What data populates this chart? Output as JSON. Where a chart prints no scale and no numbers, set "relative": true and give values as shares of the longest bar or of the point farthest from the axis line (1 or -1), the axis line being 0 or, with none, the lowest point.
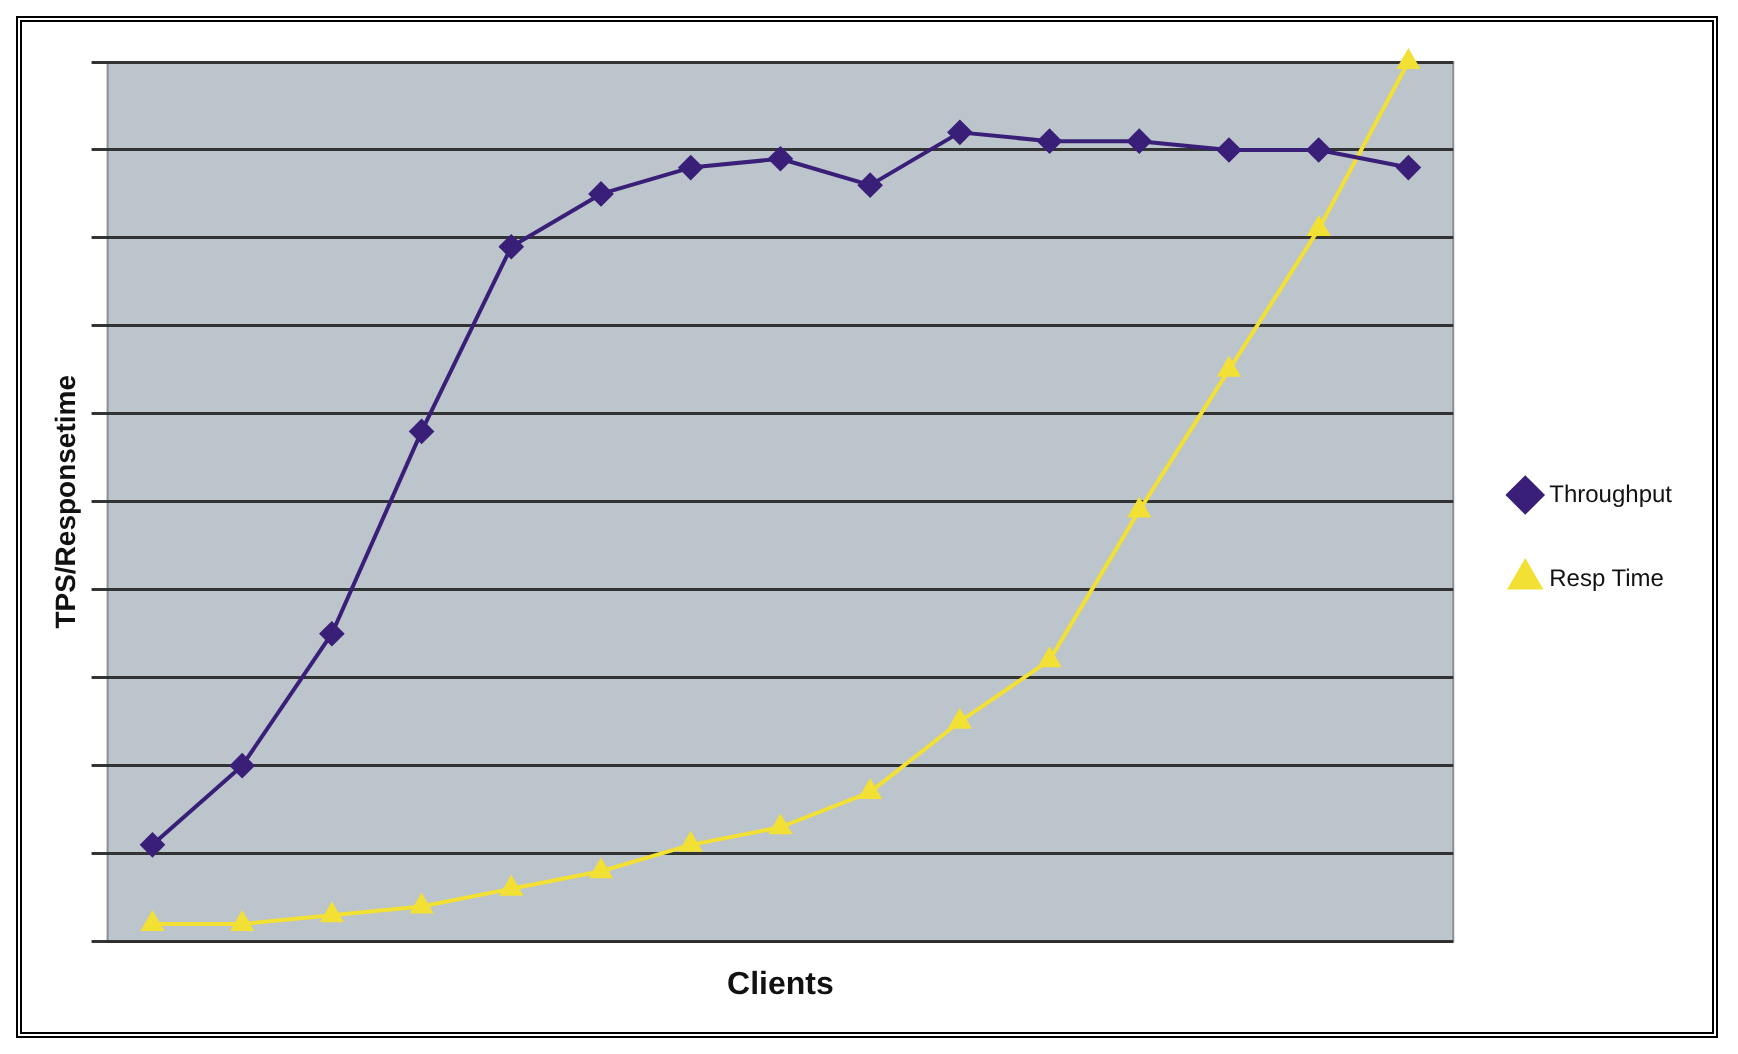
{
  "chart_data": {
    "type": "line",
    "xlabel": "Clients",
    "ylabel": "TPS/Responsetime",
    "relative": true,
    "grid": "y",
    "legend": "right",
    "categories": [
      null,
      null,
      null,
      null,
      null,
      null,
      null,
      null,
      null,
      null,
      null,
      null,
      null,
      null,
      null
    ],
    "series": [
      {
        "name": "Throughput",
        "color": "#3a1f78",
        "marker": "diamond",
        "values": [
          0.11,
          0.2,
          0.35,
          0.58,
          0.79,
          0.85,
          0.88,
          0.89,
          0.86,
          0.92,
          0.91,
          0.91,
          0.9,
          0.9,
          0.88
        ]
      },
      {
        "name": "Resp Time",
        "color": "#f2e034",
        "marker": "triangle",
        "values": [
          0.02,
          0.02,
          0.03,
          0.04,
          0.06,
          0.08,
          0.11,
          0.13,
          0.17,
          0.25,
          0.32,
          0.49,
          0.65,
          0.81,
          1
        ]
      }
    ]
  }
}
